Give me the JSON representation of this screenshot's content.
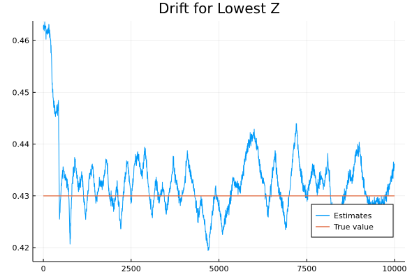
{
  "chart_data": {
    "type": "line",
    "title": "Drift for Lowest Z",
    "xlabel": "",
    "ylabel": "",
    "xlim": [
      -300,
      10300
    ],
    "ylim": [
      0.4173,
      0.4638
    ],
    "x_ticks": [
      0,
      2500,
      5000,
      7500,
      10000
    ],
    "y_ticks": [
      0.42,
      0.43,
      0.44,
      0.45,
      0.46
    ],
    "x_tick_labels": [
      "0",
      "2500",
      "5000",
      "7500",
      "10000"
    ],
    "y_tick_labels": [
      "0.42",
      "0.43",
      "0.44",
      "0.45",
      "0.46"
    ],
    "grid": true,
    "legend": {
      "position": "bottom-right"
    },
    "series": [
      {
        "name": "Estimates",
        "color": "#009af9",
        "anchors": [
          [
            0,
            0.462
          ],
          [
            50,
            0.4625
          ],
          [
            100,
            0.4615
          ],
          [
            180,
            0.462
          ],
          [
            220,
            0.4585
          ],
          [
            260,
            0.4505
          ],
          [
            300,
            0.4475
          ],
          [
            350,
            0.446
          ],
          [
            400,
            0.447
          ],
          [
            430,
            0.4475
          ],
          [
            460,
            0.4255
          ],
          [
            500,
            0.431
          ],
          [
            560,
            0.435
          ],
          [
            650,
            0.433
          ],
          [
            720,
            0.431
          ],
          [
            760,
            0.4215
          ],
          [
            820,
            0.432
          ],
          [
            900,
            0.437
          ],
          [
            1000,
            0.431
          ],
          [
            1100,
            0.434
          ],
          [
            1200,
            0.426
          ],
          [
            1300,
            0.433
          ],
          [
            1400,
            0.436
          ],
          [
            1500,
            0.429
          ],
          [
            1600,
            0.433
          ],
          [
            1700,
            0.432
          ],
          [
            1800,
            0.437
          ],
          [
            1900,
            0.429
          ],
          [
            2000,
            0.428
          ],
          [
            2100,
            0.432
          ],
          [
            2200,
            0.424
          ],
          [
            2300,
            0.432
          ],
          [
            2400,
            0.437
          ],
          [
            2500,
            0.429
          ],
          [
            2600,
            0.436
          ],
          [
            2700,
            0.438
          ],
          [
            2800,
            0.434
          ],
          [
            2900,
            0.439
          ],
          [
            3000,
            0.431
          ],
          [
            3100,
            0.426
          ],
          [
            3200,
            0.433
          ],
          [
            3300,
            0.429
          ],
          [
            3400,
            0.432
          ],
          [
            3500,
            0.427
          ],
          [
            3600,
            0.431
          ],
          [
            3700,
            0.436
          ],
          [
            3800,
            0.432
          ],
          [
            3900,
            0.429
          ],
          [
            4000,
            0.431
          ],
          [
            4100,
            0.438
          ],
          [
            4200,
            0.434
          ],
          [
            4300,
            0.431
          ],
          [
            4400,
            0.426
          ],
          [
            4500,
            0.429
          ],
          [
            4600,
            0.424
          ],
          [
            4700,
            0.4195
          ],
          [
            4800,
            0.426
          ],
          [
            4900,
            0.431
          ],
          [
            5000,
            0.428
          ],
          [
            5100,
            0.423
          ],
          [
            5200,
            0.4265
          ],
          [
            5300,
            0.428
          ],
          [
            5400,
            0.433
          ],
          [
            5500,
            0.432
          ],
          [
            5600,
            0.431
          ],
          [
            5700,
            0.435
          ],
          [
            5800,
            0.439
          ],
          [
            5900,
            0.441
          ],
          [
            6000,
            0.442
          ],
          [
            6100,
            0.439
          ],
          [
            6200,
            0.434
          ],
          [
            6300,
            0.432
          ],
          [
            6400,
            0.426
          ],
          [
            6500,
            0.433
          ],
          [
            6600,
            0.438
          ],
          [
            6700,
            0.431
          ],
          [
            6800,
            0.429
          ],
          [
            6900,
            0.4235
          ],
          [
            7000,
            0.43
          ],
          [
            7100,
            0.437
          ],
          [
            7200,
            0.4435
          ],
          [
            7300,
            0.436
          ],
          [
            7400,
            0.432
          ],
          [
            7500,
            0.4295
          ],
          [
            7600,
            0.433
          ],
          [
            7700,
            0.436
          ],
          [
            7800,
            0.431
          ],
          [
            7900,
            0.434
          ],
          [
            8000,
            0.432
          ],
          [
            8100,
            0.437
          ],
          [
            8200,
            0.428
          ],
          [
            8300,
            0.426
          ],
          [
            8400,
            0.424
          ],
          [
            8500,
            0.428
          ],
          [
            8600,
            0.43
          ],
          [
            8700,
            0.434
          ],
          [
            8800,
            0.433
          ],
          [
            8900,
            0.438
          ],
          [
            9000,
            0.439
          ],
          [
            9100,
            0.433
          ],
          [
            9200,
            0.43
          ],
          [
            9300,
            0.428
          ],
          [
            9400,
            0.428
          ],
          [
            9500,
            0.429
          ],
          [
            9600,
            0.428
          ],
          [
            9700,
            0.429
          ],
          [
            9800,
            0.431
          ],
          [
            9900,
            0.433
          ],
          [
            10000,
            0.436
          ]
        ]
      },
      {
        "name": "True value",
        "color": "#e26f46",
        "x": [
          0,
          10000
        ],
        "y": [
          0.43,
          0.43
        ]
      }
    ]
  }
}
